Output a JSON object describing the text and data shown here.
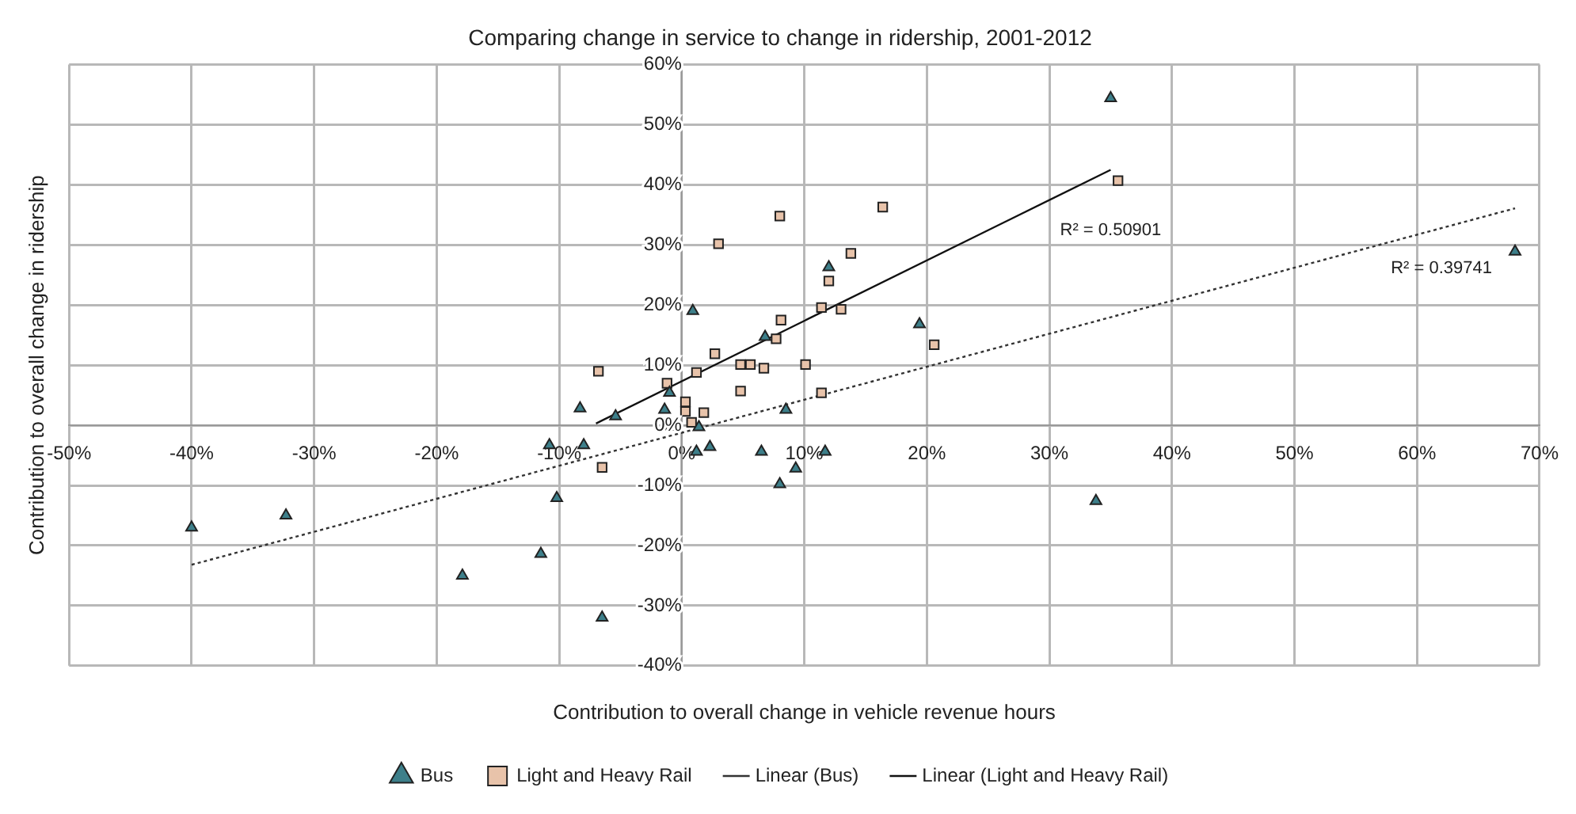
{
  "chart_data": {
    "type": "scatter",
    "title": "Comparing change in service to change in ridership, 2001-2012",
    "xlabel": "Contribution to overall change in vehicle revenue hours",
    "ylabel": "Contribution to overall change in ridership",
    "xlim": [
      -50,
      70
    ],
    "xticks": [
      {
        "value": -50,
        "label": "-50%"
      },
      {
        "value": -40,
        "label": "-40%"
      },
      {
        "value": -30,
        "label": "-30%"
      },
      {
        "value": -20,
        "label": "-20%"
      },
      {
        "value": -10,
        "label": "-10%"
      },
      {
        "value": 0,
        "label": "0%"
      },
      {
        "value": 10,
        "label": "10%"
      },
      {
        "value": 20,
        "label": "20%"
      },
      {
        "value": 30,
        "label": "30%"
      },
      {
        "value": 40,
        "label": "40%"
      },
      {
        "value": 50,
        "label": "50%"
      },
      {
        "value": 60,
        "label": "60%"
      },
      {
        "value": 70,
        "label": "70%"
      }
    ],
    "ylim": [
      -40,
      60
    ],
    "yticks": [
      {
        "value": -40,
        "label": "-40%"
      },
      {
        "value": -30,
        "label": "-30%"
      },
      {
        "value": -20,
        "label": "-20%"
      },
      {
        "value": -10,
        "label": "-10%"
      },
      {
        "value": 0,
        "label": "0%"
      },
      {
        "value": 10,
        "label": "10%"
      },
      {
        "value": 20,
        "label": "20%"
      },
      {
        "value": 30,
        "label": "30%"
      },
      {
        "value": 40,
        "label": "40%"
      },
      {
        "value": 50,
        "label": "50%"
      },
      {
        "value": 60,
        "label": "60%"
      }
    ],
    "grid": true,
    "legend": "bottom",
    "series": [
      {
        "name": "Bus",
        "type": "scatter",
        "color": "#3d7f8a",
        "marker": "triangle",
        "x": [
          -40,
          -32.3,
          -17.9,
          -11.5,
          -10.2,
          -6.5,
          -10.8,
          -8,
          1.2,
          2.3,
          6.5,
          11.7,
          8,
          9.3,
          0.9,
          -8.3,
          -5.4,
          -1.4,
          -1,
          6.8,
          8.5,
          12,
          19.4,
          35,
          68,
          33.8,
          1.4
        ],
        "values": [
          -17,
          -15,
          -25,
          -21.4,
          -12.1,
          -32,
          -3.3,
          -3.3,
          -4.4,
          -3.6,
          -4.4,
          -4.4,
          -9.8,
          -7.2,
          19,
          2.8,
          1.5,
          2.6,
          5.4,
          14.7,
          2.6,
          26.3,
          16.8,
          54.4,
          28.9,
          -12.6,
          -0.3
        ]
      },
      {
        "name": "Light and Heavy Rail",
        "type": "scatter",
        "color": "#e8c3aa",
        "marker": "square",
        "x": [
          -6.8,
          -1.2,
          0.3,
          0.3,
          -0.9,
          0.8,
          1.8,
          1.2,
          2.7,
          3,
          4.8,
          4.8,
          5.6,
          6.7,
          7.7,
          8.1,
          8,
          10.1,
          11.4,
          11.4,
          12,
          13,
          13.8,
          16.4,
          20.6,
          35.6,
          -6.5
        ],
        "values": [
          9,
          7,
          3.9,
          2.3,
          0,
          0.5,
          2.1,
          8.8,
          11.9,
          30.2,
          5.7,
          10.1,
          10.1,
          9.5,
          14.4,
          17.5,
          34.8,
          10.1,
          5.4,
          19.6,
          24,
          19.3,
          28.6,
          36.3,
          13.4,
          40.7,
          -7
        ]
      },
      {
        "name": "Linear (Bus)",
        "type": "line",
        "color": "#333333",
        "marker": "none",
        "line_style": "dotted",
        "x": [
          -40,
          68
        ],
        "values": [
          -23.2,
          36.1
        ]
      },
      {
        "name": "Linear (Light and Heavy Rail)",
        "type": "line",
        "color": "#111111",
        "marker": "none",
        "line_style": "solid",
        "x": [
          -7,
          35
        ],
        "values": [
          0.3,
          42.5
        ]
      }
    ],
    "annotations": [
      "R² = 0.39741",
      "R² = 0.50901"
    ]
  }
}
